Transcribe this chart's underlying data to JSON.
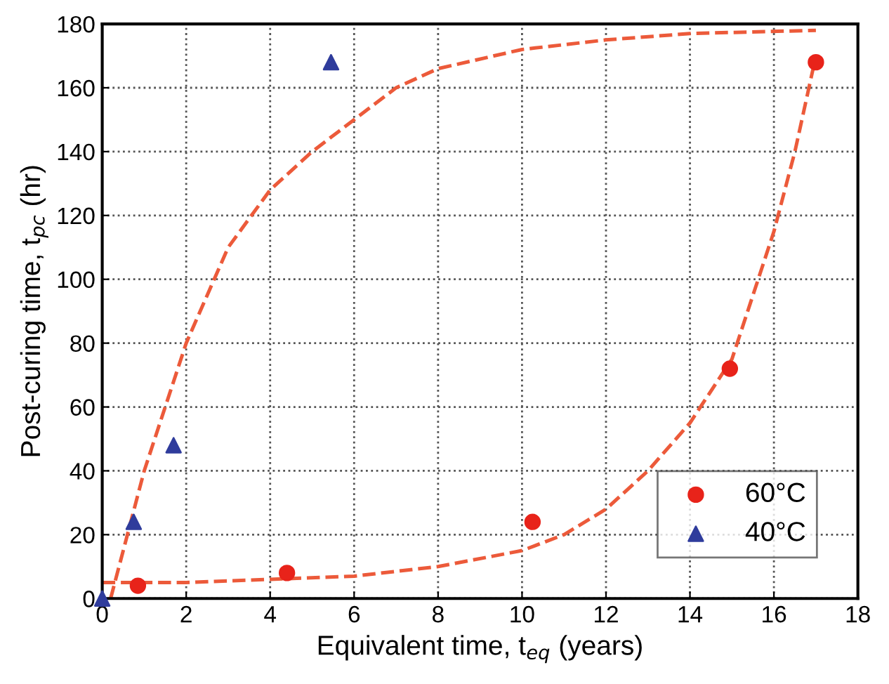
{
  "chart_data": {
    "type": "scatter",
    "xlabel": "Equivalent time, t$_{eq}$ (years)",
    "ylabel": "Post-curing time, t$_{pc}$ (hr)",
    "xlim": [
      0,
      18
    ],
    "ylim": [
      0,
      180
    ],
    "xticks": [
      0,
      2,
      4,
      6,
      8,
      10,
      12,
      14,
      16,
      18
    ],
    "yticks": [
      0,
      20,
      40,
      60,
      80,
      100,
      120,
      140,
      160,
      180
    ],
    "grid": true,
    "legend": "bottom right",
    "series": [
      {
        "name": "60°C",
        "color": "#e8231a",
        "marker": "circle",
        "x": [
          0.85,
          4.4,
          10.25,
          14.95,
          17
        ],
        "values": [
          4,
          8,
          24,
          72,
          168
        ]
      },
      {
        "name": "40°C",
        "color": "#2f3c9c",
        "marker": "triangle",
        "x": [
          0,
          0.75,
          1.7,
          5.45
        ],
        "values": [
          0,
          24,
          48,
          168
        ]
      },
      {
        "type": "line",
        "color": "#ec5a3a",
        "line_style": "dashed",
        "marker": "none",
        "x": [
          0.2,
          0.5,
          1,
          1.5,
          2,
          2.5,
          3,
          4,
          5,
          6,
          7,
          8,
          10,
          12,
          14,
          17
        ],
        "values": [
          0,
          15,
          40,
          60,
          80,
          95,
          110,
          128,
          140,
          150,
          160,
          166,
          172,
          175,
          177,
          178
        ]
      },
      {
        "type": "line",
        "color": "#ec5a3a",
        "line_style": "dashed",
        "marker": "none",
        "x": [
          0,
          2,
          4,
          6,
          8,
          10,
          11,
          12,
          13,
          14,
          15,
          16,
          16.5,
          17
        ],
        "values": [
          5,
          5,
          6,
          7,
          10,
          15,
          20,
          28,
          40,
          55,
          75,
          115,
          140,
          170
        ]
      }
    ]
  }
}
